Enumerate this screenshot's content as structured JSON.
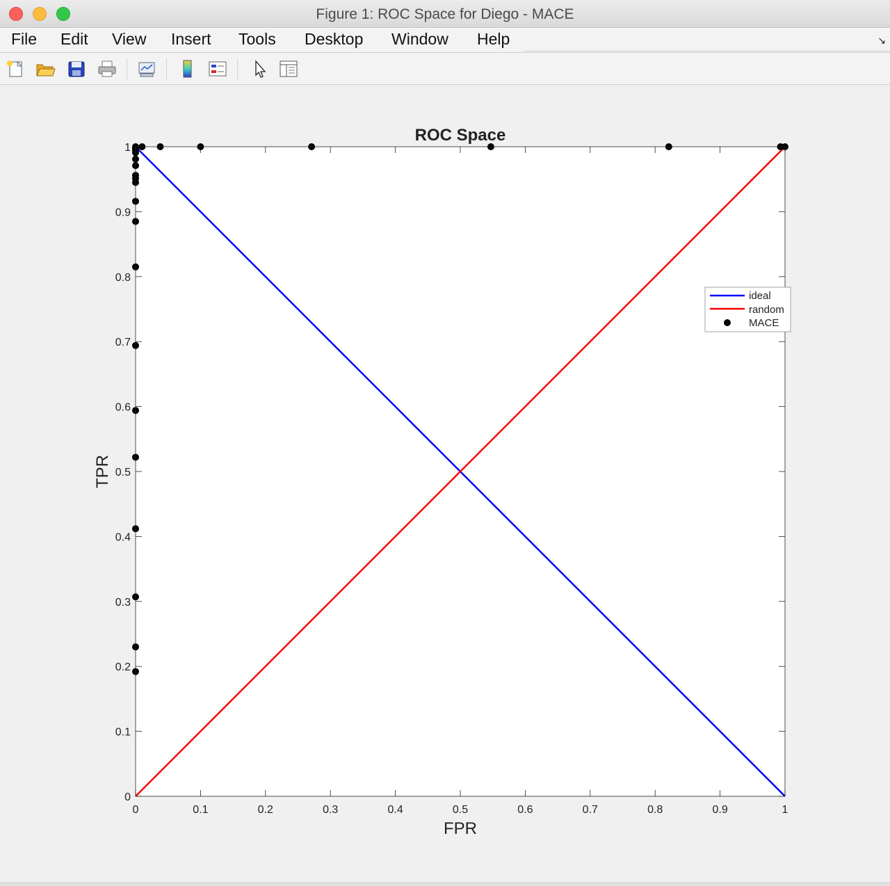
{
  "window": {
    "title": "Figure 1: ROC Space for Diego - MACE"
  },
  "menu": {
    "items": [
      "File",
      "Edit",
      "View",
      "Insert",
      "Tools",
      "Desktop",
      "Window",
      "Help"
    ]
  },
  "toolbar": {
    "icons": [
      "new-figure-icon",
      "open-file-icon",
      "save-icon",
      "print-icon",
      "link-plot-icon",
      "colorbar-icon",
      "legend-icon",
      "edit-plot-icon",
      "property-inspector-icon"
    ]
  },
  "chart_data": {
    "type": "line+scatter",
    "title": "ROC Space",
    "xlabel": "FPR",
    "ylabel": "TPR",
    "xlim": [
      0,
      1
    ],
    "ylim": [
      0,
      1
    ],
    "xticks": [
      "0",
      "0.1",
      "0.2",
      "0.3",
      "0.4",
      "0.5",
      "0.6",
      "0.7",
      "0.8",
      "0.9",
      "1"
    ],
    "yticks": [
      "0",
      "0.1",
      "0.2",
      "0.3",
      "0.4",
      "0.5",
      "0.6",
      "0.7",
      "0.8",
      "0.9",
      "1"
    ],
    "grid": false,
    "legend_position": "right",
    "series": [
      {
        "name": "ideal",
        "kind": "line",
        "color": "#0000ff",
        "x": [
          0,
          1
        ],
        "y": [
          1,
          0
        ]
      },
      {
        "name": "random",
        "kind": "line",
        "color": "#ff0000",
        "x": [
          0,
          1
        ],
        "y": [
          0,
          1
        ]
      },
      {
        "name": "MACE",
        "kind": "scatter",
        "color": "#000000",
        "x": [
          0,
          0,
          0,
          0,
          0,
          0,
          0,
          0,
          0,
          0,
          0,
          0,
          0,
          0,
          0,
          0,
          0,
          0,
          0,
          0,
          0.01,
          0.038,
          0.1,
          0.271,
          0.547,
          0.821,
          0.993,
          1.0
        ],
        "y": [
          0.192,
          0.23,
          0.307,
          0.412,
          0.522,
          0.594,
          0.694,
          0.815,
          0.885,
          0.916,
          0.945,
          0.951,
          0.956,
          0.971,
          0.981,
          0.991,
          0.995,
          0.997,
          0.999,
          1.0,
          1,
          1,
          1,
          1,
          1,
          1,
          1,
          1
        ]
      }
    ]
  }
}
